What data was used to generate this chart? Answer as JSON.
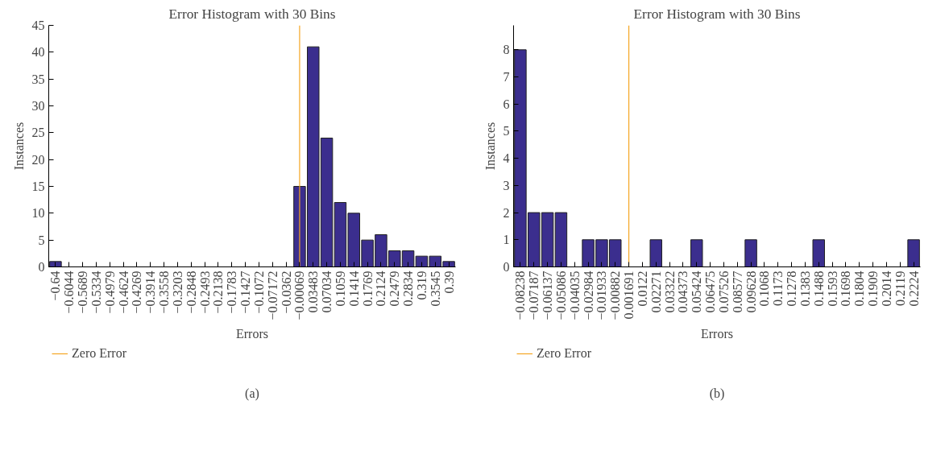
{
  "chart_data": [
    {
      "type": "bar",
      "title": "Error Histogram with 30 Bins",
      "xlabel": "Errors",
      "ylabel": "Instances",
      "categories": [
        "−0.64",
        "−0.6044",
        "−0.5689",
        "−0.5334",
        "−0.4979",
        "−0.4624",
        "−0.4269",
        "−0.3914",
        "−0.3558",
        "−0.3203",
        "−0.2848",
        "−0.2493",
        "−0.2138",
        "−0.1783",
        "−0.1427",
        "−0.1072",
        "−0.07172",
        "−0.0362",
        "−0.00069",
        "0.03483",
        "0.07034",
        "0.1059",
        "0.1414",
        "0.1769",
        "0.2124",
        "0.2479",
        "0.2834",
        "0.319",
        "0.3545",
        "0.39"
      ],
      "values": [
        1,
        0,
        0,
        0,
        0,
        0,
        0,
        0,
        0,
        0,
        0,
        0,
        0,
        0,
        0,
        0,
        0,
        0,
        15,
        41,
        24,
        12,
        10,
        5,
        6,
        3,
        3,
        2,
        2,
        1
      ],
      "color": "#3b2e8e",
      "ylim": [
        0,
        45
      ],
      "yticks": [
        0,
        5,
        10,
        15,
        20,
        25,
        30,
        35,
        40,
        45
      ],
      "grid": false,
      "legend": "bottom left",
      "ref_lines": [
        {
          "axis": "x",
          "value": "−0.00069",
          "label": "Zero Error",
          "color": "#f5a623"
        }
      ],
      "annotations": [
        "(a)"
      ]
    },
    {
      "type": "bar",
      "title": "Error Histogram with 30 Bins",
      "xlabel": "Errors",
      "ylabel": "Instances",
      "categories": [
        "−0.08238",
        "−0.07187",
        "−0.06137",
        "−0.05086",
        "−0.04035",
        "−0.02984",
        "−0.01933",
        "−0.00882",
        "0.001691",
        "0.0122",
        "0.02271",
        "0.03322",
        "0.04373",
        "0.05424",
        "0.06475",
        "0.07526",
        "0.08577",
        "0.09628",
        "0.1068",
        "0.1173",
        "0.1278",
        "0.1383",
        "0.1488",
        "0.1593",
        "0.1698",
        "0.1804",
        "0.1909",
        "0.2014",
        "0.2119",
        "0.2224"
      ],
      "values": [
        8,
        2,
        2,
        2,
        0,
        1,
        1,
        1,
        0,
        0,
        1,
        0,
        0,
        1,
        0,
        0,
        0,
        1,
        0,
        0,
        0,
        0,
        1,
        0,
        0,
        0,
        0,
        0,
        0,
        1
      ],
      "color": "#3b2e8e",
      "ylim": [
        0,
        8.9
      ],
      "yticks": [
        0,
        1,
        2,
        3,
        4,
        5,
        6,
        7,
        8
      ],
      "grid": false,
      "legend": "bottom left",
      "ref_lines": [
        {
          "axis": "x",
          "value": "0.001691",
          "label": "Zero Error",
          "color": "#f5a623"
        }
      ],
      "annotations": [
        "(b)"
      ]
    }
  ]
}
